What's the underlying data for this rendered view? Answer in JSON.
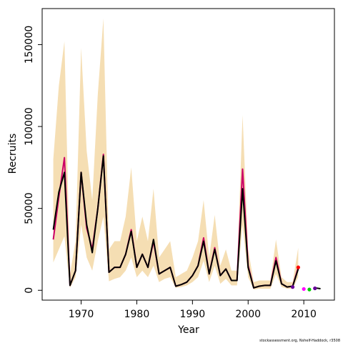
{
  "chart_data": {
    "type": "line",
    "title": "",
    "xlabel": "Year",
    "ylabel": "Recruits",
    "xlim": [
      1963.0,
      2015.5
    ],
    "ylim": [
      -6000,
      172000
    ],
    "x_ticks": [
      1970,
      1980,
      1990,
      2000,
      2010
    ],
    "y_ticks": [
      0,
      50000,
      100000,
      150000
    ],
    "y_tick_labels": [
      "0",
      "50000",
      "100000",
      "150000"
    ],
    "grid": false,
    "legend": "none",
    "colors": {
      "band": "#f5deb3",
      "series_main": "#000000",
      "series_alt": "#cc0066",
      "series_alt2": "#8b1a4a",
      "point_red": "#ff0000",
      "point_magenta": "#ff00ff",
      "point_green": "#00cc00",
      "point_purple": "#660099"
    },
    "x": [
      1965,
      1966,
      1967,
      1968,
      1969,
      1970,
      1971,
      1972,
      1973,
      1974,
      1975,
      1976,
      1977,
      1978,
      1979,
      1980,
      1981,
      1982,
      1983,
      1984,
      1985,
      1986,
      1987,
      1988,
      1989,
      1990,
      1991,
      1992,
      1993,
      1994,
      1995,
      1996,
      1997,
      1998,
      1999,
      2000,
      2001,
      2002,
      2003,
      2004,
      2005,
      2006,
      2007,
      2008,
      2009,
      2010,
      2011,
      2012,
      2013
    ],
    "band_upper": [
      80000,
      125000,
      152000,
      10000,
      30000,
      148000,
      85000,
      55000,
      120000,
      166000,
      25000,
      30000,
      30000,
      45000,
      75000,
      30000,
      45000,
      30000,
      62000,
      20000,
      25000,
      30000,
      8000,
      10000,
      12000,
      20000,
      30000,
      55000,
      20000,
      46000,
      15000,
      25000,
      12000,
      12000,
      107000,
      25000,
      5000,
      6000,
      6000,
      6000,
      31000,
      8000,
      5000,
      5000,
      26000,
      null,
      null,
      null,
      null
    ],
    "band_lower": [
      17000,
      25000,
      33000,
      1500,
      8000,
      40000,
      20000,
      12000,
      30000,
      45000,
      5500,
      7000,
      8000,
      12000,
      20000,
      8000,
      12000,
      8000,
      15000,
      5000,
      7000,
      8000,
      1500,
      2000,
      3000,
      5000,
      8000,
      18000,
      5000,
      15000,
      4000,
      7000,
      3000,
      3000,
      40000,
      8000,
      500,
      1000,
      1000,
      1000,
      10000,
      2000,
      1000,
      1000,
      8000,
      null,
      null,
      null,
      null
    ],
    "series": [
      {
        "values": [
          37000,
          60000,
          72000,
          3000,
          12000,
          72000,
          40000,
          23000,
          50000,
          82000,
          11000,
          14000,
          14000,
          22000,
          36000,
          14000,
          22000,
          14000,
          31000,
          10000,
          12000,
          14000,
          2500,
          3500,
          5000,
          9000,
          15000,
          30000,
          10000,
          25000,
          9000,
          13000,
          6000,
          6000,
          62000,
          14000,
          1500,
          2500,
          3000,
          3000,
          18000,
          4000,
          2000,
          2500,
          13000,
          null,
          null,
          1500,
          1000
        ]
      },
      {
        "values": [
          31000,
          57000,
          81000,
          3000,
          12000,
          72000,
          38000,
          25000,
          50000,
          83000,
          11000,
          14000,
          14000,
          22000,
          37000,
          14000,
          22000,
          14000,
          30000,
          10000,
          12000,
          14000,
          2500,
          3500,
          5000,
          9000,
          15000,
          32000,
          10000,
          26000,
          9000,
          13000,
          6000,
          6000,
          74000,
          15000,
          1500,
          2500,
          3000,
          3000,
          20000,
          4000,
          2000,
          2500,
          14000,
          null,
          null,
          null,
          null
        ]
      }
    ],
    "points": [
      {
        "x": 2008,
        "y": 2000,
        "color": "purple"
      },
      {
        "x": 2009,
        "y": 14000,
        "color": "red"
      },
      {
        "x": 2010,
        "y": 800,
        "color": "magenta"
      },
      {
        "x": 2011,
        "y": 500,
        "color": "green"
      },
      {
        "x": 2012,
        "y": 1200,
        "color": "purple"
      }
    ]
  },
  "credit": "stockassessment.org, Nshelf-Haddock, r3508"
}
